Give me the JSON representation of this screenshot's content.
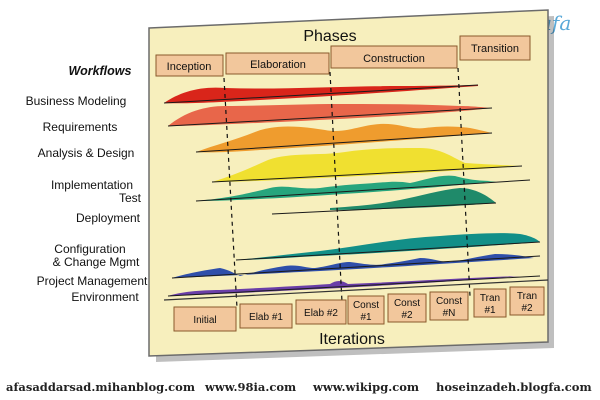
{
  "logo": "afa",
  "title": "Phases",
  "workflows_heading": "Workflows",
  "bottom_title": "Iterations",
  "phases": [
    "Inception",
    "Elaboration",
    "Construction",
    "Transition"
  ],
  "workflows": [
    {
      "label": [
        "Business Modeling"
      ],
      "color": "#d9251a"
    },
    {
      "label": [
        "Requirements"
      ],
      "color": "#e8664a"
    },
    {
      "label": [
        "Analysis & Design"
      ],
      "color": "#ef9c2e"
    },
    {
      "label": [
        "Implementation",
        "Test"
      ],
      "color": "#f0e030"
    },
    {
      "label": [
        "Deployment"
      ],
      "color": "#27a57d"
    },
    {
      "label": [
        "Configuration",
        "& Change Mgmt"
      ],
      "color": "#128f88"
    },
    {
      "label": [
        "Project Management"
      ],
      "color": "#2f4faa"
    },
    {
      "label": [
        "Environment"
      ],
      "color": "#6a3ea8"
    }
  ],
  "iterations": [
    [
      "Initial"
    ],
    [
      "Elab #1"
    ],
    [
      "Elab #2"
    ],
    [
      "Const",
      "#1"
    ],
    [
      "Const",
      "#2"
    ],
    [
      "Const",
      "#N"
    ],
    [
      "Tran",
      "#1"
    ],
    [
      "Tran",
      "#2"
    ]
  ],
  "footer_links": [
    "afasaddarsad.mihanblog.com",
    "www.98ia.com",
    "www.wikipg.com",
    "hoseinzadeh.blogfa.com"
  ],
  "colors": {
    "panel": "#f7efbd",
    "box": "#f2c79c",
    "box_border": "#8a5a2c",
    "frame": "#4a4a4a",
    "logo": "#5aa9d8"
  }
}
